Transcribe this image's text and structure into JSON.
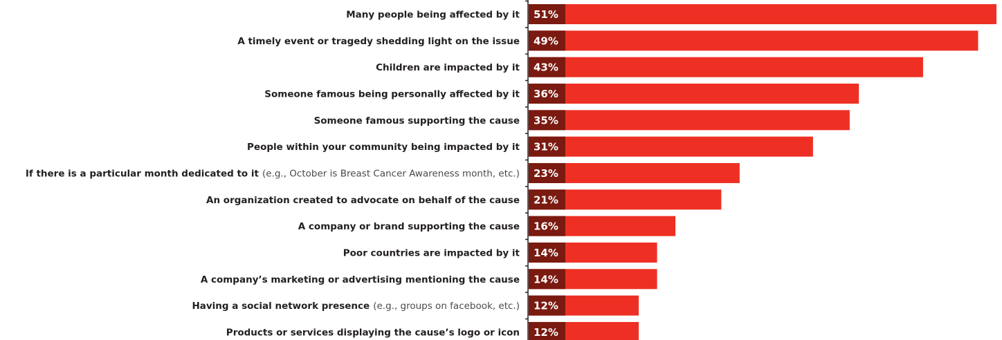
{
  "chart_data": {
    "type": "bar",
    "orientation": "horizontal",
    "categories": [
      {
        "label": "Many people being affected by it",
        "note": ""
      },
      {
        "label": "A timely event or tragedy shedding light on the issue",
        "note": ""
      },
      {
        "label": "Children are impacted by it",
        "note": ""
      },
      {
        "label": "Someone famous being personally affected by it",
        "note": ""
      },
      {
        "label": "Someone famous supporting the cause",
        "note": ""
      },
      {
        "label": "People within your community being impacted by it",
        "note": ""
      },
      {
        "label": "If there is a particular month dedicated to it",
        "note": "(e.g., October is Breast Cancer Awareness month, etc.)"
      },
      {
        "label": "An organization created to advocate on behalf of the cause",
        "note": ""
      },
      {
        "label": "A company or brand supporting the cause",
        "note": ""
      },
      {
        "label": "Poor countries are impacted by it",
        "note": ""
      },
      {
        "label": "A company’s marketing or advertising mentioning the cause",
        "note": ""
      },
      {
        "label": "Having a social network presence",
        "note": "(e.g., groups on facebook, etc.)"
      },
      {
        "label": "Products or services displaying the cause’s logo or icon",
        "note": ""
      }
    ],
    "values": [
      51,
      49,
      43,
      36,
      35,
      31,
      23,
      21,
      16,
      14,
      14,
      12,
      12
    ],
    "value_labels": [
      "51%",
      "49%",
      "43%",
      "36%",
      "35%",
      "31%",
      "23%",
      "21%",
      "16%",
      "14%",
      "14%",
      "12%",
      "12%"
    ],
    "xlim": [
      0,
      51
    ],
    "grid": false,
    "legend": "none",
    "colors": {
      "bar": "#ee3024",
      "value_box": "#7a1a10",
      "axis": "#231f20"
    }
  }
}
